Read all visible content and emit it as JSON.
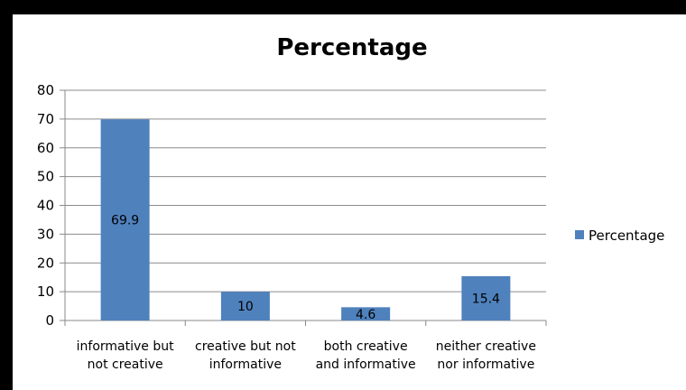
{
  "chart_data": {
    "type": "bar",
    "title": "Percentage",
    "categories": [
      [
        "informative but",
        "not creative"
      ],
      [
        "creative but not",
        "informative"
      ],
      [
        "both creative",
        "and informative"
      ],
      [
        "neither creative",
        "nor informative"
      ]
    ],
    "series": [
      {
        "name": "Percentage",
        "values": [
          69.9,
          10,
          4.6,
          15.4
        ],
        "color": "#4f81bd"
      }
    ],
    "data_labels": [
      "69.9",
      "10",
      "4.6",
      "15.4"
    ],
    "ylim": [
      0,
      80
    ],
    "yticks": [
      0,
      10,
      20,
      30,
      40,
      50,
      60,
      70,
      80
    ],
    "grid": true,
    "legend": "right"
  }
}
